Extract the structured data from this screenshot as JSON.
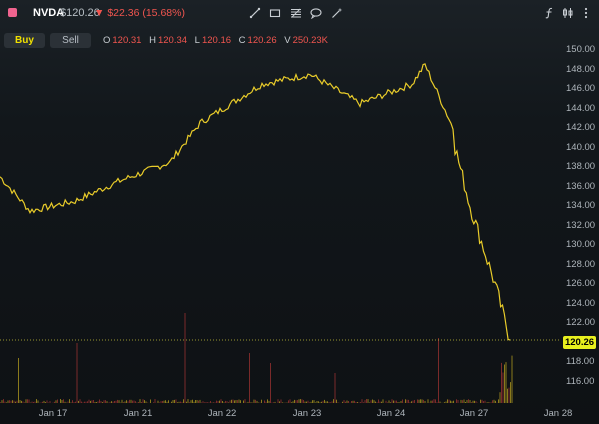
{
  "header": {
    "symbol": "NVDA",
    "price": "$120.26",
    "change": "$22.36 (15.68%)",
    "change_direction": "down",
    "tools": [
      "trend-line-icon",
      "rectangle-icon",
      "fib-retracement-icon",
      "annotation-icon",
      "magic-wand-icon"
    ],
    "right_tools": [
      "indicator-icon",
      "candle-style-icon",
      "more-icon"
    ]
  },
  "trade": {
    "buy_label": "Buy",
    "sell_label": "Sell"
  },
  "ohlc": {
    "o_label": "O",
    "o": "120.31",
    "h_label": "H",
    "h": "120.34",
    "l_label": "L",
    "l": "120.16",
    "c_label": "C",
    "c": "120.26",
    "v_label": "V",
    "v": "250.23K"
  },
  "last_price_label": "120.26",
  "colors": {
    "up": "#e9cc2a",
    "down": "#e24b4b",
    "accent": "#e8f01e",
    "change_down": "#f0554f"
  },
  "chart_data": {
    "type": "line",
    "y_ticks": [
      "150.00",
      "148.00",
      "146.00",
      "144.00",
      "142.00",
      "140.00",
      "138.00",
      "136.00",
      "134.00",
      "132.00",
      "130.00",
      "128.00",
      "126.00",
      "124.00",
      "122.00",
      "120.00",
      "118.00",
      "116.00"
    ],
    "x_ticks": [
      "Jan 17",
      "Jan 21",
      "Jan 22",
      "Jan 23",
      "Jan 24",
      "Jan 27",
      "Jan 28"
    ],
    "ylim": [
      115,
      150.5
    ],
    "x": [
      "Jan 16",
      "Jan 17",
      "Jan 18",
      "Jan 21",
      "Jan 21.5",
      "Jan 22",
      "Jan 22.5",
      "Jan 23",
      "Jan 23.5",
      "Jan 24",
      "Jan 24.4",
      "Jan 24.7",
      "Jan 27 open",
      "Jan 27",
      "Jan 27.5",
      "Jan 27 close"
    ],
    "series": [
      {
        "values": [
          137.0,
          133.5,
          134.5,
          136.5,
          138.5,
          142.5,
          146.5,
          147.5,
          144.5,
          146.5,
          148.5,
          142.0,
          140.0,
          134.0,
          126.0,
          120.26
        ]
      }
    ],
    "last_price": 120.26
  }
}
